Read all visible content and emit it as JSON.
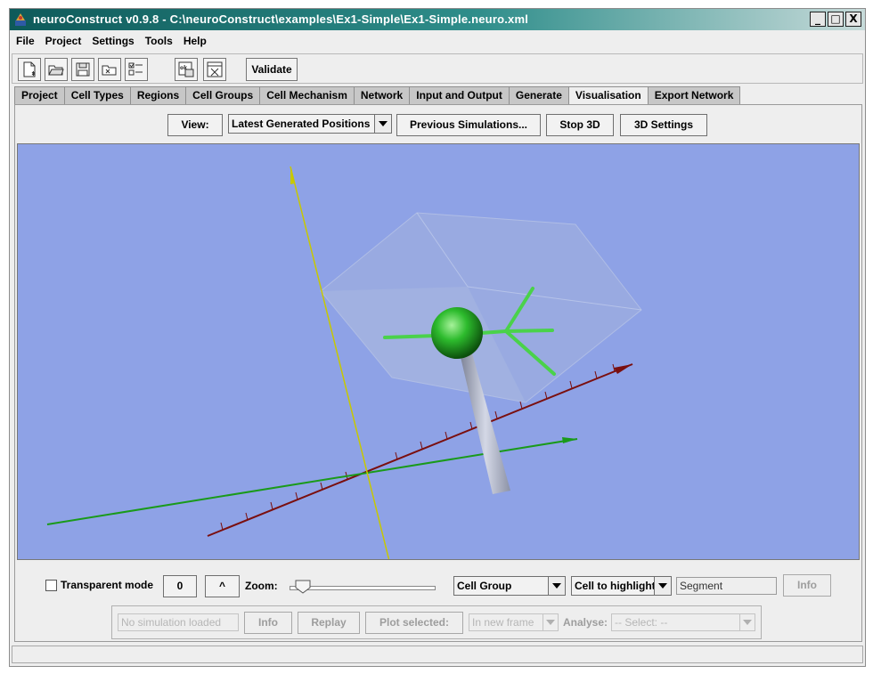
{
  "window": {
    "title": "neuroConstruct v0.9.8 - C:\\neuroConstruct\\examples\\Ex1-Simple\\Ex1-Simple.neuro.xml",
    "controls": {
      "minimize": "_",
      "maximize": "□",
      "close": "X"
    }
  },
  "menubar": {
    "items": [
      "File",
      "Project",
      "Settings",
      "Tools",
      "Help"
    ]
  },
  "toolbar": {
    "icons": [
      "new-project-icon",
      "open-project-icon",
      "save-project-icon",
      "close-project-icon",
      "edit-preferences-icon",
      "check-html-icon",
      "close-window-icon"
    ],
    "validate_label": "Validate"
  },
  "tabs": {
    "items": [
      "Project",
      "Cell Types",
      "Regions",
      "Cell Groups",
      "Cell Mechanism",
      "Network",
      "Input and Output",
      "Generate",
      "Visualisation",
      "Export Network"
    ],
    "active": "Visualisation"
  },
  "view_bar": {
    "view_label": "View:",
    "positions_select": "Latest Generated Positions",
    "previous_simulations_label": "Previous Simulations...",
    "stop_3d_label": "Stop 3D",
    "settings_3d_label": "3D Settings"
  },
  "scene": {
    "background_color": "#8ea2e6",
    "axis_colors": {
      "y": "#c8c800",
      "x": "#7a0f0f",
      "z": "#1a9a1a"
    },
    "soma_color": "#2dbb2d",
    "dendrite_color": "#4ad24a",
    "axon_color": "#b8bccc",
    "region_box_color": "#a6b4dc"
  },
  "controls": {
    "transparent_mode_label": "Transparent mode",
    "transparent_mode_checked": false,
    "counter_value": "0",
    "caret_label": "^",
    "zoom_label": "Zoom:",
    "zoom_level": 0.1,
    "cell_group_select": "Cell Group",
    "highlight_select": "Cell to highlight",
    "segment_field": "Segment",
    "info_label": "Info"
  },
  "simulation": {
    "status_field": "No simulation loaded",
    "info_label": "Info",
    "replay_label": "Replay",
    "plot_selected_label": "Plot selected:",
    "frame_select": "In new frame",
    "analyse_label": "Analyse:",
    "analyse_select": "-- Select: --"
  }
}
